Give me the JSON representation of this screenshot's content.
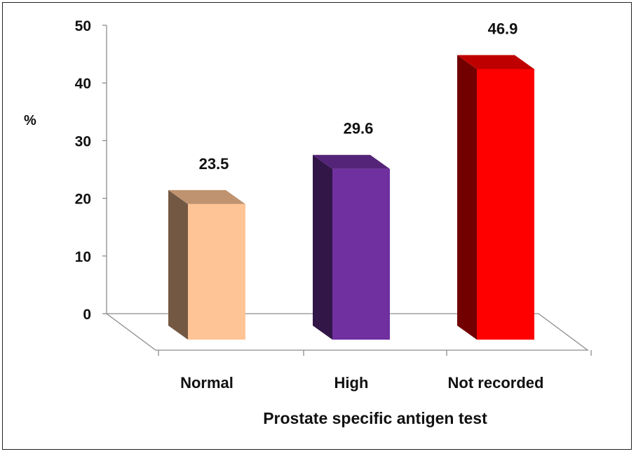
{
  "chart_data": {
    "type": "bar",
    "title": "",
    "xlabel": "Prostate specific antigen test",
    "ylabel": "%",
    "ylim": [
      0,
      50
    ],
    "yticks": [
      "0",
      "10",
      "20",
      "30",
      "40",
      "50"
    ],
    "grid": false,
    "legend": "none",
    "style": "3d",
    "categories": [
      "Normal",
      "High",
      "Not recorded"
    ],
    "values": [
      23.5,
      29.6,
      46.9
    ],
    "value_labels": [
      "23.5",
      "29.6",
      "46.9"
    ],
    "colors": [
      "#FFC495",
      "#7030A0",
      "#FF0000"
    ]
  }
}
